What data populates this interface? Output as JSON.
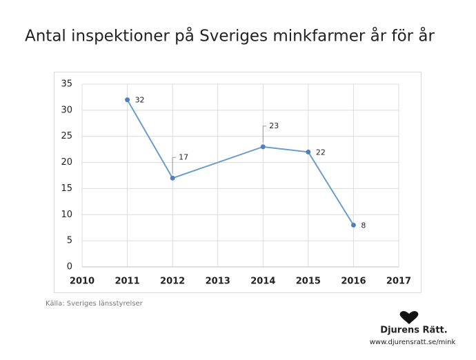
{
  "chart_data": {
    "type": "line",
    "title": "Antal inspektioner på Sveriges minkfarmer år för år",
    "x": [
      2011,
      2012,
      2014,
      2015,
      2016
    ],
    "series": [
      {
        "name": "Inspektioner",
        "color": "#6b9bc9",
        "values": [
          32,
          17,
          23,
          22,
          8
        ]
      }
    ],
    "xlim": [
      2010,
      2017
    ],
    "xticks": [
      2010,
      2011,
      2012,
      2013,
      2014,
      2015,
      2016,
      2017
    ],
    "ylim": [
      0,
      35
    ],
    "yticks": [
      0,
      5,
      10,
      15,
      20,
      25,
      30,
      35
    ],
    "grid": true,
    "source": "Källa: Sveriges länsstyrelser"
  },
  "footer": {
    "brand": "Djurens Rätt.",
    "url": "www.djurensratt.se/mink"
  }
}
